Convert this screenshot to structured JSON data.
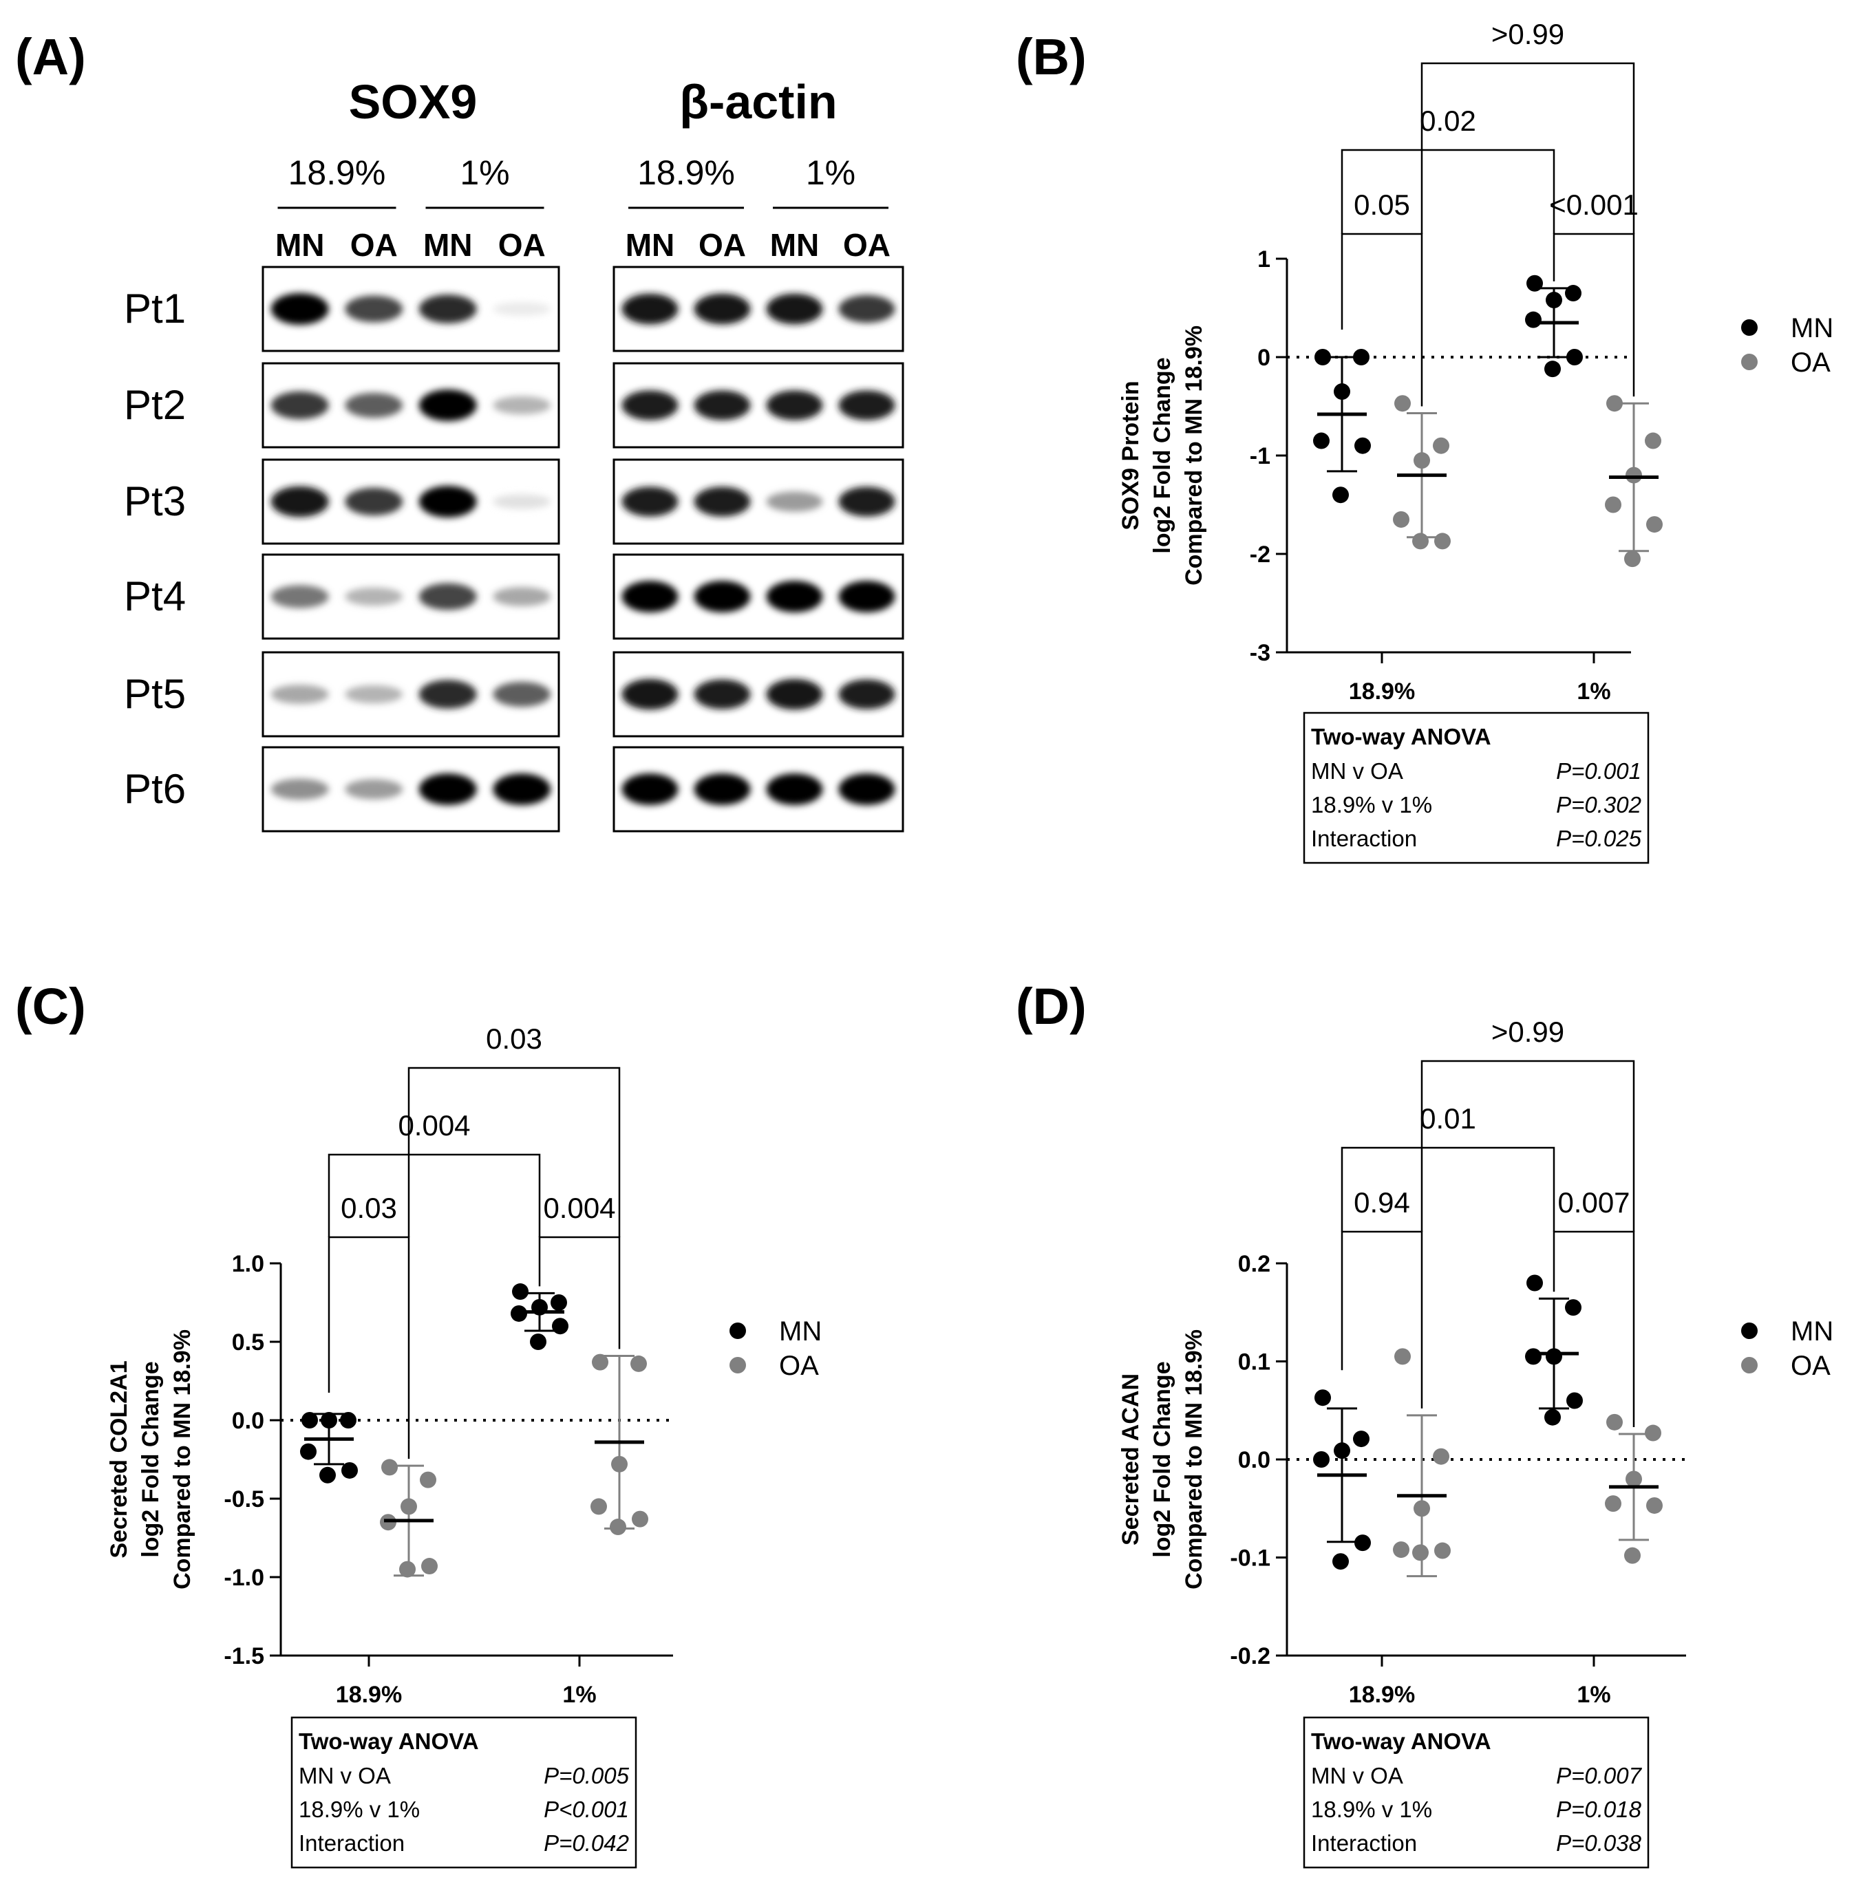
{
  "panels": {
    "A": "(A)",
    "B": "(B)",
    "C": "(C)",
    "D": "(D)"
  },
  "blot": {
    "sox9_title": "SOX9",
    "actin_title": "β-actin",
    "conditions": [
      "18.9%",
      "1%"
    ],
    "lanes": [
      "MN",
      "OA",
      "MN",
      "OA"
    ],
    "patients": [
      "Pt1",
      "Pt2",
      "Pt3",
      "Pt4",
      "Pt5",
      "Pt6"
    ],
    "sox9_intensity": [
      [
        1.0,
        0.75,
        0.85,
        0.08
      ],
      [
        0.8,
        0.65,
        1.0,
        0.3
      ],
      [
        0.95,
        0.8,
        1.0,
        0.12
      ],
      [
        0.55,
        0.3,
        0.75,
        0.35
      ],
      [
        0.35,
        0.3,
        0.85,
        0.65
      ],
      [
        0.45,
        0.4,
        1.0,
        1.0
      ]
    ],
    "actin_intensity": [
      [
        0.95,
        0.95,
        0.95,
        0.8
      ],
      [
        0.9,
        0.9,
        0.9,
        0.9
      ],
      [
        0.9,
        0.9,
        0.4,
        0.9
      ],
      [
        1.0,
        1.0,
        1.0,
        1.0
      ],
      [
        0.95,
        0.9,
        0.95,
        0.9
      ],
      [
        1.0,
        1.0,
        1.0,
        1.0
      ]
    ]
  },
  "legend": {
    "mn": "MN",
    "oa": "OA",
    "mn_color": "#000000",
    "oa_color": "#808080"
  },
  "anova_header": "Two-way ANOVA",
  "chart_data": [
    {
      "type": "scatter",
      "panel": "B",
      "ylabel_lines": [
        "SOX9 Protein",
        "log2 Fold Change",
        "Compared to  MN 18.9%"
      ],
      "categories": [
        "18.9%",
        "1%"
      ],
      "ylim": [
        -3,
        1
      ],
      "yticks": [
        1,
        0,
        -1,
        -2,
        -3
      ],
      "yticklabels": [
        "1",
        "0",
        "-1",
        "-2",
        "-3"
      ],
      "reference_line": 0,
      "series": [
        {
          "name": "MN",
          "category": "18.9%",
          "values": [
            0.0,
            0.0,
            -0.35,
            -0.85,
            -0.9,
            -1.4
          ],
          "mean": -0.58,
          "sd": 0.58
        },
        {
          "name": "OA",
          "category": "18.9%",
          "values": [
            -0.47,
            -0.9,
            -1.05,
            -1.65,
            -1.87,
            -1.87
          ],
          "mean": -1.2,
          "sd": 0.63
        },
        {
          "name": "MN",
          "category": "1%",
          "values": [
            0.75,
            0.65,
            0.58,
            0.38,
            0.0,
            -0.12
          ],
          "mean": 0.35,
          "sd": 0.35
        },
        {
          "name": "OA",
          "category": "1%",
          "values": [
            -0.47,
            -0.85,
            -1.2,
            -1.5,
            -1.7,
            -2.05
          ],
          "mean": -1.22,
          "sd": 0.75
        }
      ],
      "comparisons": [
        {
          "label": "0.05",
          "from": "MN 18.9%",
          "to": "OA 18.9%"
        },
        {
          "label": "<0.001",
          "from": "MN 1%",
          "to": "OA 1%"
        },
        {
          "label": "0.02",
          "from": "MN 18.9%",
          "to": "MN 1%"
        },
        {
          "label": ">0.99",
          "from": "OA 18.9%",
          "to": "OA 1%"
        }
      ],
      "anova": [
        {
          "term": "MN v OA",
          "p": "P=0.001"
        },
        {
          "term": "18.9% v 1%",
          "p": "P=0.302"
        },
        {
          "term": "Interaction",
          "p": "P=0.025"
        }
      ]
    },
    {
      "type": "scatter",
      "panel": "C",
      "ylabel_lines": [
        "Secreted COL2A1",
        "log2 Fold Change",
        "Compared to  MN 18.9%"
      ],
      "categories": [
        "18.9%",
        "1%"
      ],
      "ylim": [
        -1.5,
        1.0
      ],
      "yticks": [
        1.0,
        0.5,
        0.0,
        -0.5,
        -1.0,
        -1.5
      ],
      "yticklabels": [
        "1.0",
        "0.5",
        "0.0",
        "-0.5",
        "-1.0",
        "-1.5"
      ],
      "reference_line": 0,
      "series": [
        {
          "name": "MN",
          "category": "18.9%",
          "values": [
            0.0,
            0.0,
            0.0,
            -0.2,
            -0.32,
            -0.35
          ],
          "mean": -0.12,
          "sd": 0.16
        },
        {
          "name": "OA",
          "category": "18.9%",
          "values": [
            -0.3,
            -0.38,
            -0.55,
            -0.65,
            -0.93,
            -0.95
          ],
          "mean": -0.64,
          "sd": 0.35
        },
        {
          "name": "MN",
          "category": "1%",
          "values": [
            0.82,
            0.75,
            0.72,
            0.68,
            0.6,
            0.5
          ],
          "mean": 0.69,
          "sd": 0.12
        },
        {
          "name": "OA",
          "category": "1%",
          "values": [
            0.37,
            0.36,
            -0.28,
            -0.55,
            -0.63,
            -0.68
          ],
          "mean": -0.14,
          "sd": 0.55
        }
      ],
      "comparisons": [
        {
          "label": "0.03",
          "from": "MN 18.9%",
          "to": "OA 18.9%"
        },
        {
          "label": "0.004",
          "from": "MN 1%",
          "to": "OA 1%"
        },
        {
          "label": "0.004",
          "from": "MN 18.9%",
          "to": "MN 1%"
        },
        {
          "label": "0.03",
          "from": "OA 18.9%",
          "to": "OA 1%"
        }
      ],
      "anova": [
        {
          "term": "MN v OA",
          "p": "P=0.005"
        },
        {
          "term": "18.9% v 1%",
          "p": "P<0.001"
        },
        {
          "term": "Interaction",
          "p": "P=0.042"
        }
      ]
    },
    {
      "type": "scatter",
      "panel": "D",
      "ylabel_lines": [
        "Secreted ACAN",
        "log2 Fold Change",
        "Compared to  MN 18.9%"
      ],
      "categories": [
        "18.9%",
        "1%"
      ],
      "ylim": [
        -0.2,
        0.2
      ],
      "yticks": [
        0.2,
        0.1,
        0.0,
        -0.1,
        -0.2
      ],
      "yticklabels": [
        "0.2",
        "0.1",
        "0.0",
        "-0.1",
        "-0.2"
      ],
      "reference_line": 0,
      "series": [
        {
          "name": "MN",
          "category": "18.9%",
          "values": [
            0.063,
            0.021,
            0.009,
            0.0,
            -0.085,
            -0.104
          ],
          "mean": -0.016,
          "sd": 0.068
        },
        {
          "name": "OA",
          "category": "18.9%",
          "values": [
            0.105,
            0.003,
            -0.05,
            -0.092,
            -0.093,
            -0.095
          ],
          "mean": -0.037,
          "sd": 0.082
        },
        {
          "name": "MN",
          "category": "1%",
          "values": [
            0.18,
            0.155,
            0.105,
            0.105,
            0.06,
            0.043
          ],
          "mean": 0.108,
          "sd": 0.056
        },
        {
          "name": "OA",
          "category": "1%",
          "values": [
            0.038,
            0.027,
            -0.02,
            -0.045,
            -0.047,
            -0.098
          ],
          "mean": -0.028,
          "sd": 0.054
        }
      ],
      "comparisons": [
        {
          "label": "0.94",
          "from": "MN 18.9%",
          "to": "OA 18.9%"
        },
        {
          "label": "0.007",
          "from": "MN 1%",
          "to": "OA 1%"
        },
        {
          "label": "0.01",
          "from": "MN 18.9%",
          "to": "MN 1%"
        },
        {
          "label": ">0.99",
          "from": "OA 18.9%",
          "to": "OA 1%"
        }
      ],
      "anova": [
        {
          "term": "MN v OA",
          "p": "P=0.007"
        },
        {
          "term": "18.9% v 1%",
          "p": "P=0.018"
        },
        {
          "term": "Interaction",
          "p": "P=0.038"
        }
      ]
    }
  ]
}
